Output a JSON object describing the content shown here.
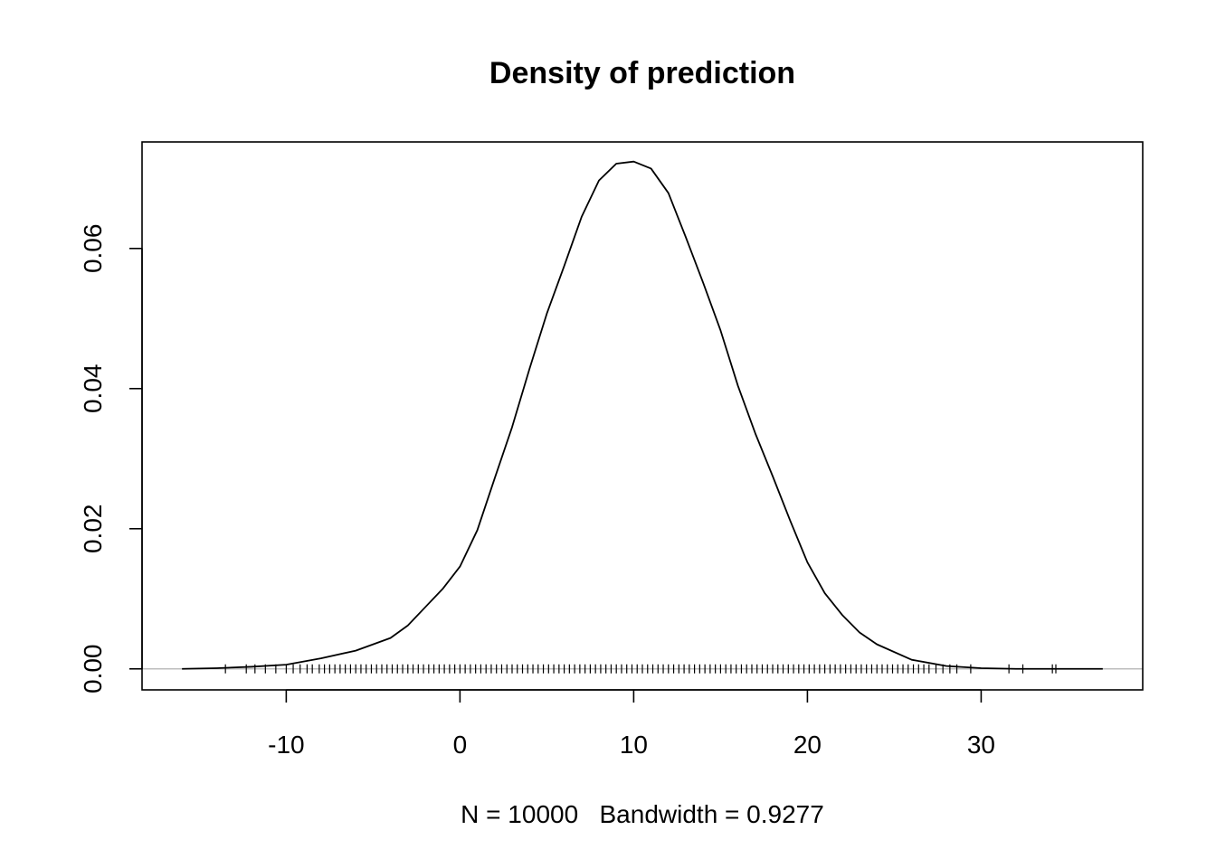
{
  "chart_data": {
    "type": "line",
    "title": "Density of prediction",
    "xlabel": "N = 10000   Bandwidth = 0.9277",
    "ylabel": "",
    "xlim": [
      -18.3,
      39.3
    ],
    "ylim": [
      -0.003,
      0.0752
    ],
    "x_ticks": [
      -10,
      0,
      10,
      20,
      30
    ],
    "x_tick_labels": [
      "-10",
      "0",
      "10",
      "20",
      "30"
    ],
    "y_ticks": [
      0.0,
      0.02,
      0.04,
      0.06
    ],
    "y_tick_labels": [
      "0.00",
      "0.02",
      "0.04",
      "0.06"
    ],
    "grid": false,
    "baseline": 0,
    "series": [
      {
        "color": "#000000",
        "x": [
          -16,
          -14,
          -12,
          -10,
          -8,
          -6,
          -4,
          -3,
          -2,
          -1,
          0,
          1,
          2,
          3,
          4,
          5,
          6,
          7,
          8,
          9,
          10,
          11,
          12,
          13,
          14,
          15,
          16,
          17,
          18,
          19,
          20,
          21,
          22,
          23,
          24,
          26,
          28,
          30,
          32,
          34,
          37
        ],
        "y": [
          0.0,
          0.0001,
          0.0003,
          0.0006,
          0.0015,
          0.0026,
          0.0044,
          0.0062,
          0.0088,
          0.0114,
          0.0146,
          0.0198,
          0.0272,
          0.0345,
          0.0428,
          0.0507,
          0.0575,
          0.0645,
          0.0697,
          0.0721,
          0.0724,
          0.0714,
          0.0679,
          0.0616,
          0.0551,
          0.0483,
          0.0404,
          0.0336,
          0.0275,
          0.0212,
          0.0152,
          0.0108,
          0.0077,
          0.0052,
          0.0035,
          0.0013,
          0.0004,
          0.0001,
          0.0,
          0.0,
          0.0
        ]
      }
    ],
    "rug_x": [
      -13.5,
      -12.3,
      -11.8,
      -11.2,
      -10.6,
      -10.0,
      -9.6,
      -9.2,
      -8.8,
      -8.5,
      -8.1,
      -7.8,
      -7.5,
      -7.2,
      -6.9,
      -6.6,
      -6.3,
      -6.0,
      -5.7,
      -5.4,
      -5.1,
      -4.8,
      -4.5,
      -4.2,
      -3.9,
      -3.6,
      -3.3,
      -3.0,
      -2.7,
      -2.4,
      -2.1,
      -1.8,
      -1.5,
      -1.2,
      -0.9,
      -0.6,
      -0.3,
      0.0,
      0.3,
      0.6,
      0.9,
      1.2,
      1.5,
      1.8,
      2.1,
      2.4,
      2.7,
      3.0,
      3.3,
      3.6,
      3.9,
      4.2,
      4.5,
      4.8,
      5.1,
      5.4,
      5.7,
      6.0,
      6.3,
      6.6,
      6.9,
      7.2,
      7.5,
      7.8,
      8.1,
      8.4,
      8.7,
      9.0,
      9.3,
      9.6,
      9.9,
      10.2,
      10.5,
      10.8,
      11.1,
      11.4,
      11.7,
      12.0,
      12.3,
      12.6,
      12.9,
      13.2,
      13.5,
      13.8,
      14.1,
      14.4,
      14.7,
      15.0,
      15.3,
      15.6,
      15.9,
      16.2,
      16.5,
      16.8,
      17.1,
      17.4,
      17.7,
      18.0,
      18.3,
      18.6,
      18.9,
      19.2,
      19.5,
      19.8,
      20.1,
      20.4,
      20.7,
      21.0,
      21.3,
      21.6,
      21.9,
      22.2,
      22.5,
      22.8,
      23.1,
      23.4,
      23.7,
      24.0,
      24.3,
      24.6,
      24.9,
      25.2,
      25.5,
      25.8,
      26.1,
      26.4,
      26.7,
      27.0,
      27.4,
      27.8,
      28.2,
      28.6,
      29.4,
      31.6,
      32.4,
      34.1,
      34.3
    ]
  }
}
